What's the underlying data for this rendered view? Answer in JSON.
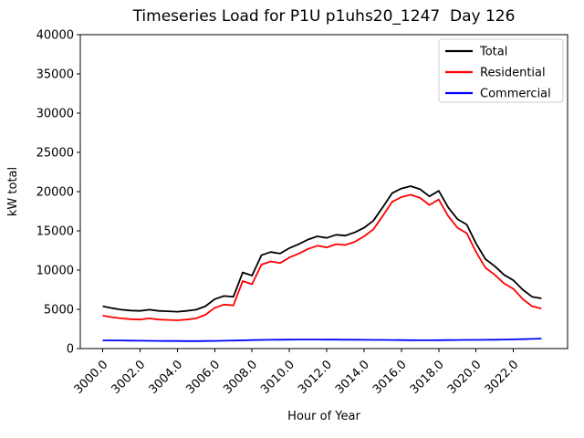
{
  "chart_data": {
    "type": "line",
    "title": "Timeseries Load for P1U p1uhs20_1247  Day 126",
    "xlabel": "Hour of Year",
    "ylabel": "kW total",
    "xlim": [
      2998.8,
      3024.9
    ],
    "ylim": [
      0,
      40000
    ],
    "grid": false,
    "legend_position": "upper right",
    "legend_frame_color": "#cccccc",
    "background_color": "#ffffff",
    "xtick_labels": [
      "3000.0",
      "3002.0",
      "3004.0",
      "3006.0",
      "3008.0",
      "3010.0",
      "3012.0",
      "3014.0",
      "3016.0",
      "3018.0",
      "3020.0",
      "3022.0"
    ],
    "ytick_labels": [
      "0",
      "5000",
      "10000",
      "15000",
      "20000",
      "25000",
      "30000",
      "35000",
      "40000"
    ],
    "x": [
      3000.0,
      3000.5,
      3001.0,
      3001.5,
      3002.0,
      3002.5,
      3003.0,
      3003.5,
      3004.0,
      3004.5,
      3005.0,
      3005.5,
      3006.0,
      3006.5,
      3007.0,
      3007.5,
      3008.0,
      3008.5,
      3009.0,
      3009.5,
      3010.0,
      3010.5,
      3011.0,
      3011.5,
      3012.0,
      3012.5,
      3013.0,
      3013.5,
      3014.0,
      3014.5,
      3015.0,
      3015.5,
      3016.0,
      3016.5,
      3017.0,
      3017.5,
      3018.0,
      3018.5,
      3019.0,
      3019.5,
      3020.0,
      3020.5,
      3021.0,
      3021.5,
      3022.0,
      3022.5,
      3023.0,
      3023.5
    ],
    "series": [
      {
        "name": "Total",
        "color": "#000000",
        "values": [
          5400,
          5150,
          4950,
          4850,
          4800,
          4950,
          4800,
          4750,
          4700,
          4800,
          4950,
          5400,
          6300,
          6700,
          6600,
          9700,
          9300,
          11900,
          12300,
          12100,
          12800,
          13300,
          13900,
          14300,
          14100,
          14500,
          14400,
          14800,
          15400,
          16300,
          18000,
          19800,
          20400,
          20700,
          20300,
          19400,
          20100,
          18000,
          16500,
          15800,
          13400,
          11400,
          10500,
          9400,
          8700,
          7500,
          6600,
          6400
        ]
      },
      {
        "name": "Residential",
        "color": "#ff0000",
        "values": [
          4200,
          4000,
          3850,
          3750,
          3700,
          3850,
          3700,
          3650,
          3600,
          3700,
          3850,
          4300,
          5200,
          5600,
          5500,
          8600,
          8200,
          10700,
          11100,
          10900,
          11600,
          12100,
          12700,
          13100,
          12900,
          13300,
          13200,
          13600,
          14300,
          15200,
          16900,
          18700,
          19300,
          19600,
          19200,
          18300,
          19000,
          16900,
          15400,
          14700,
          12300,
          10300,
          9400,
          8300,
          7600,
          6300,
          5400,
          5100
        ]
      },
      {
        "name": "Commercial",
        "color": "#0000ff",
        "values": [
          1050,
          1040,
          1030,
          1010,
          1000,
          990,
          980,
          970,
          960,
          950,
          950,
          960,
          980,
          1000,
          1020,
          1050,
          1080,
          1100,
          1120,
          1130,
          1140,
          1150,
          1150,
          1150,
          1140,
          1140,
          1130,
          1130,
          1120,
          1110,
          1100,
          1090,
          1080,
          1070,
          1060,
          1060,
          1070,
          1080,
          1090,
          1100,
          1110,
          1120,
          1130,
          1150,
          1170,
          1200,
          1230,
          1270
        ]
      }
    ]
  }
}
